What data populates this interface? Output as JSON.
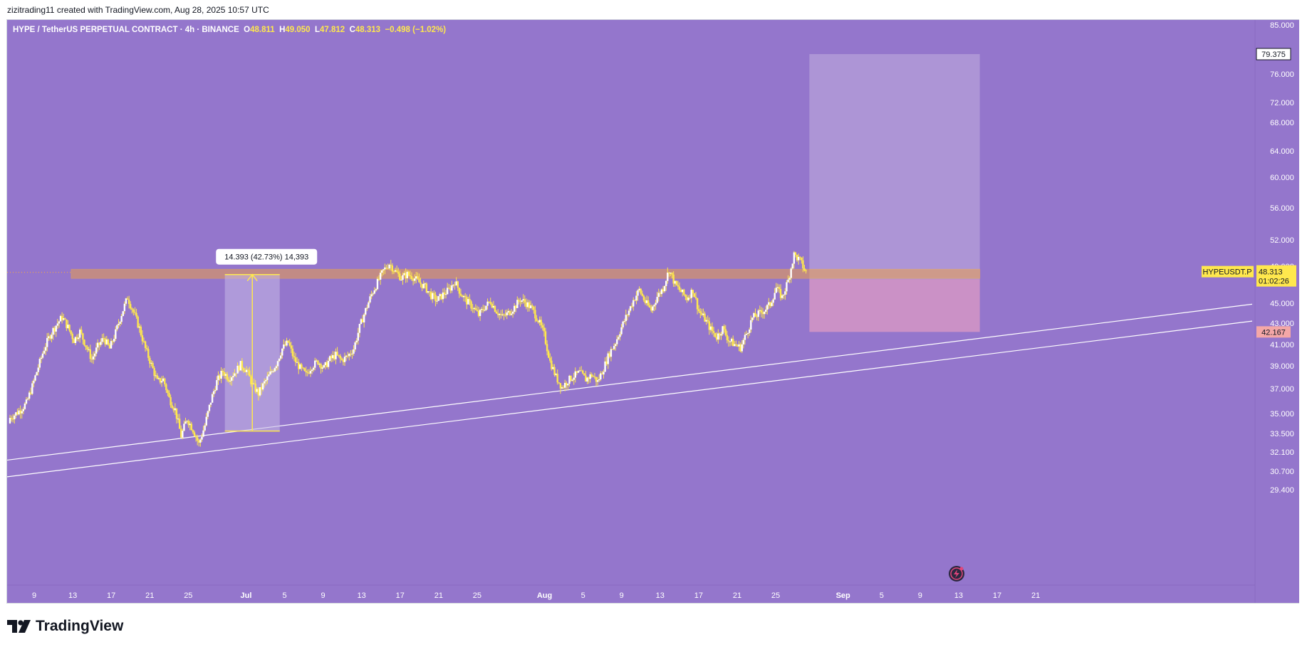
{
  "header": {
    "attribution": "zizitrading11 created with TradingView.com, Aug 28, 2025 10:57 UTC"
  },
  "legend": {
    "symbol": "HYPE / TetherUS PERPETUAL CONTRACT · 4h · BINANCE",
    "open_label": "O",
    "open": "48.811",
    "high_label": "H",
    "high": "49.050",
    "low_label": "L",
    "low": "47.812",
    "close_label": "C",
    "close": "48.313",
    "change": "−0.498 (−1.02%)"
  },
  "footer": {
    "brand": "TradingView"
  },
  "colors": {
    "background": "#9476cc",
    "candle": "#ffe84d",
    "zone_fill": "#f0a040",
    "zone_border": "#ffb030",
    "target_box": "#b6a0da",
    "stop_box": "#d899c4",
    "trendline": "#ffffff",
    "price_tag": "#ffe84d",
    "stop_tag": "#f4a7a7",
    "gray_tag": "#6b6b7b"
  },
  "chart_data": {
    "type": "candlestick",
    "symbol": "HYPEUSDT.P",
    "interval": "4h",
    "exchange": "BINANCE",
    "x_tick_labels": [
      "9",
      "13",
      "17",
      "21",
      "25",
      "Jul",
      "5",
      "9",
      "13",
      "17",
      "21",
      "25",
      "Aug",
      "5",
      "9",
      "13",
      "17",
      "21",
      "25",
      "Sep",
      "5",
      "9",
      "13",
      "17",
      "21"
    ],
    "y_tick_labels": [
      "85.000",
      "76.000",
      "72.000",
      "68.000",
      "64.000",
      "60.000",
      "56.000",
      "52.000",
      "49.000",
      "45.000",
      "43.000",
      "41.000",
      "39.000",
      "37.000",
      "35.000",
      "33.500",
      "32.100",
      "30.700",
      "29.400"
    ],
    "y_ticks": [
      85.0,
      76.0,
      72.0,
      68.0,
      64.0,
      60.0,
      56.0,
      52.0,
      49.0,
      45.0,
      43.0,
      41.0,
      39.0,
      37.0,
      35.0,
      33.5,
      32.1,
      30.7,
      29.4
    ],
    "y_scale": "log",
    "closes": [
      34.6,
      34.9,
      35.3,
      35.8,
      37.2,
      38.9,
      40.6,
      41.9,
      42.8,
      43.6,
      42.6,
      41.4,
      42.2,
      40.9,
      39.6,
      40.8,
      41.6,
      40.6,
      42.1,
      43.9,
      45.6,
      44.1,
      42.5,
      40.6,
      39.1,
      37.6,
      37.8,
      36.2,
      35.3,
      33.3,
      34.6,
      33.8,
      32.7,
      34.1,
      36.0,
      37.6,
      38.5,
      37.9,
      38.4,
      39.1,
      38.6,
      37.3,
      36.6,
      37.5,
      38.3,
      39.2,
      40.6,
      41.2,
      39.6,
      38.8,
      38.2,
      39.0,
      39.4,
      38.8,
      39.6,
      40.0,
      39.5,
      39.9,
      40.6,
      42.6,
      44.3,
      45.9,
      47.2,
      48.5,
      49.3,
      48.4,
      47.7,
      48.1,
      47.8,
      47.2,
      46.7,
      45.8,
      45.3,
      45.9,
      46.4,
      47.3,
      46.0,
      45.2,
      44.6,
      43.8,
      44.6,
      45.2,
      44.2,
      43.6,
      44.0,
      44.6,
      45.4,
      45.0,
      44.4,
      43.3,
      41.9,
      39.4,
      38.0,
      37.1,
      37.7,
      38.1,
      38.4,
      37.8,
      38.2,
      37.6,
      38.8,
      40.2,
      41.2,
      42.6,
      43.9,
      45.3,
      46.4,
      45.1,
      44.3,
      45.7,
      46.6,
      48.6,
      47.0,
      46.2,
      45.5,
      46.4,
      44.2,
      43.4,
      42.4,
      41.7,
      42.5,
      41.4,
      41.0,
      40.7,
      42.0,
      43.5,
      43.9,
      44.3,
      44.9,
      46.6,
      45.6,
      47.4,
      50.3,
      49.6,
      48.3
    ],
    "current_price": 48.313,
    "current_price_countdown": "01:02:26",
    "price_tags": [
      {
        "label": "79.375",
        "value": 79.375,
        "kind": "target"
      },
      {
        "label": "47.555",
        "value": 47.555,
        "kind": "entry"
      },
      {
        "label": "42.167",
        "value": 42.167,
        "kind": "stop"
      }
    ],
    "resistance_zone": {
      "low": 47.65,
      "high": 48.65
    },
    "measure_annotation": {
      "label": "14.393 (42.73%) 14,393",
      "from": 33.68,
      "to": 48.07
    },
    "long_position": {
      "entry": 47.555,
      "target": 79.375,
      "stop": 42.167
    },
    "trendlines": [
      {
        "name": "upper",
        "from": 31.5,
        "to": 44.9
      },
      {
        "name": "lower",
        "from": 30.3,
        "to": 43.2
      }
    ]
  }
}
